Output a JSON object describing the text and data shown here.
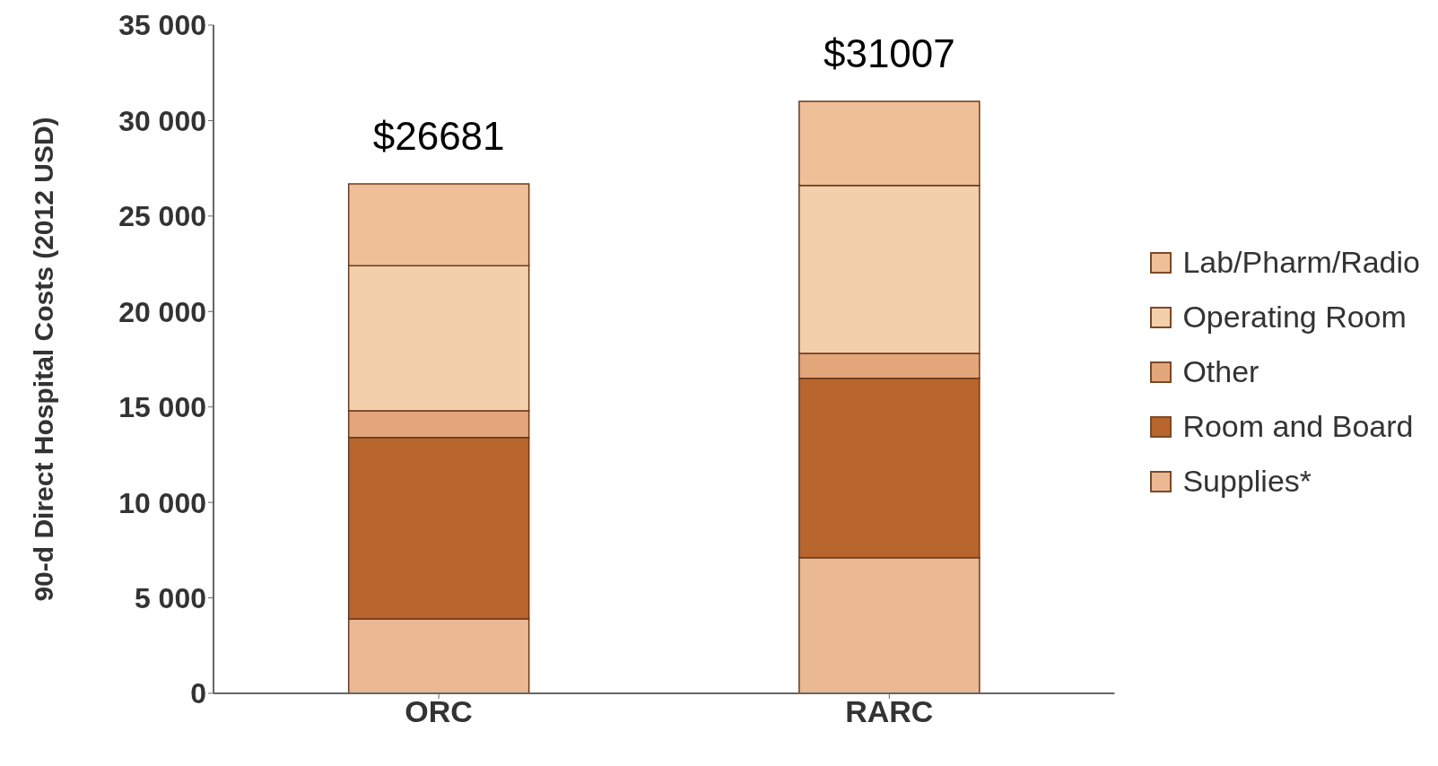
{
  "chart_data": {
    "type": "bar",
    "stacked": true,
    "ylabel": "90-d Direct Hospital Costs (2012 USD)",
    "categories": [
      "ORC",
      "RARC"
    ],
    "series": [
      {
        "name": "Supplies*",
        "color": "#eab994",
        "values": [
          3900,
          7100
        ]
      },
      {
        "name": "Room and Board",
        "color": "#b8652e",
        "values": [
          9500,
          9400
        ]
      },
      {
        "name": "Other",
        "color": "#e3a67a",
        "values": [
          1400,
          1300
        ]
      },
      {
        "name": "Operating Room",
        "color": "#f3cfac",
        "values": [
          7600,
          8800
        ]
      },
      {
        "name": "Lab/Pharm/Radio",
        "color": "#efbf98",
        "values": [
          4281,
          4407
        ]
      }
    ],
    "totals": [
      "$26681",
      "$31007"
    ],
    "ylim": [
      0,
      35000
    ],
    "yticks": [
      {
        "value": 0,
        "label": "0"
      },
      {
        "value": 5000,
        "label": "5 000"
      },
      {
        "value": 10000,
        "label": "10 000"
      },
      {
        "value": 15000,
        "label": "15 000"
      },
      {
        "value": 20000,
        "label": "20 000"
      },
      {
        "value": 25000,
        "label": "25 000"
      },
      {
        "value": 30000,
        "label": "30 000"
      },
      {
        "value": 35000,
        "label": "35 000"
      }
    ],
    "grid": false,
    "legend": "right"
  }
}
